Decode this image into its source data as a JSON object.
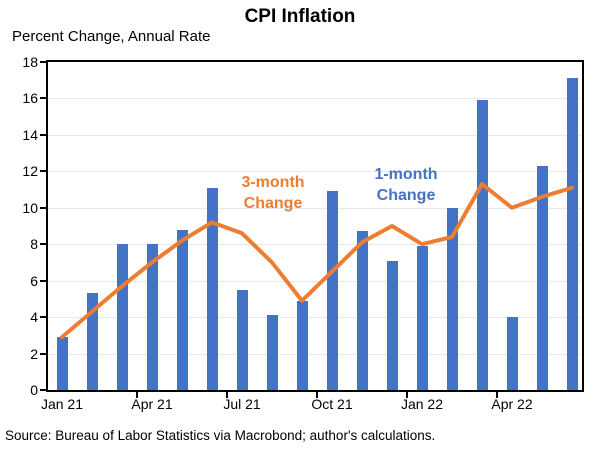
{
  "header": {
    "title": "CPI Inflation",
    "subtitle": "Percent Change, Annual Rate"
  },
  "footer": {
    "source": "Source: Bureau of Labor Statistics via Macrobond; author's calculations."
  },
  "chart_data": {
    "type": "bar",
    "subtype": "bar-and-line combo",
    "title": "CPI Inflation",
    "ylabel": "Percent Change, Annual Rate",
    "categories": [
      "Jan 21",
      "Feb 21",
      "Mar 21",
      "Apr 21",
      "May 21",
      "Jun 21",
      "Jul 21",
      "Aug 21",
      "Sep 21",
      "Oct 21",
      "Nov 21",
      "Dec 21",
      "Jan 22",
      "Feb 22",
      "Mar 22",
      "Apr 22",
      "May 22",
      "Jun 22"
    ],
    "series": [
      {
        "name": "1-month Change",
        "type": "bar",
        "color": "#4472C4",
        "values": [
          2.9,
          5.3,
          8.0,
          8.0,
          8.8,
          11.1,
          5.5,
          4.1,
          4.9,
          10.9,
          8.7,
          7.1,
          7.9,
          10.0,
          15.9,
          4.0,
          12.3,
          17.1
        ]
      },
      {
        "name": "3-month Change",
        "type": "line",
        "color": "#ED7D31",
        "values": [
          2.9,
          4.3,
          5.7,
          7.0,
          8.2,
          9.2,
          8.6,
          7.0,
          4.9,
          6.5,
          8.1,
          9.0,
          8.0,
          8.4,
          11.3,
          10.0,
          10.6,
          11.1
        ]
      }
    ],
    "ylim": [
      0,
      18
    ],
    "ytick_step": 2,
    "ytick_labels": [
      "0",
      "2",
      "4",
      "6",
      "8",
      "10",
      "12",
      "14",
      "16",
      "18"
    ],
    "xtick_labels": [
      "Jan 21",
      "Apr 21",
      "Jul 21",
      "Oct 21",
      "Jan 22",
      "Apr 22"
    ],
    "grid": "horizontal light-gray lines every 2 units, full black plot border",
    "legend_position": "in-plot text annotations",
    "annotations": [
      {
        "line1": "3-month",
        "line2": "Change",
        "color": "#ED7D31"
      },
      {
        "line1": "1-month",
        "line2": "Change",
        "color": "#4472C4"
      }
    ]
  },
  "colors": {
    "bar": "#4472C4",
    "line": "#ED7D31",
    "gridline": "#e8e8e8",
    "axis": "#000000",
    "background": "#ffffff"
  }
}
